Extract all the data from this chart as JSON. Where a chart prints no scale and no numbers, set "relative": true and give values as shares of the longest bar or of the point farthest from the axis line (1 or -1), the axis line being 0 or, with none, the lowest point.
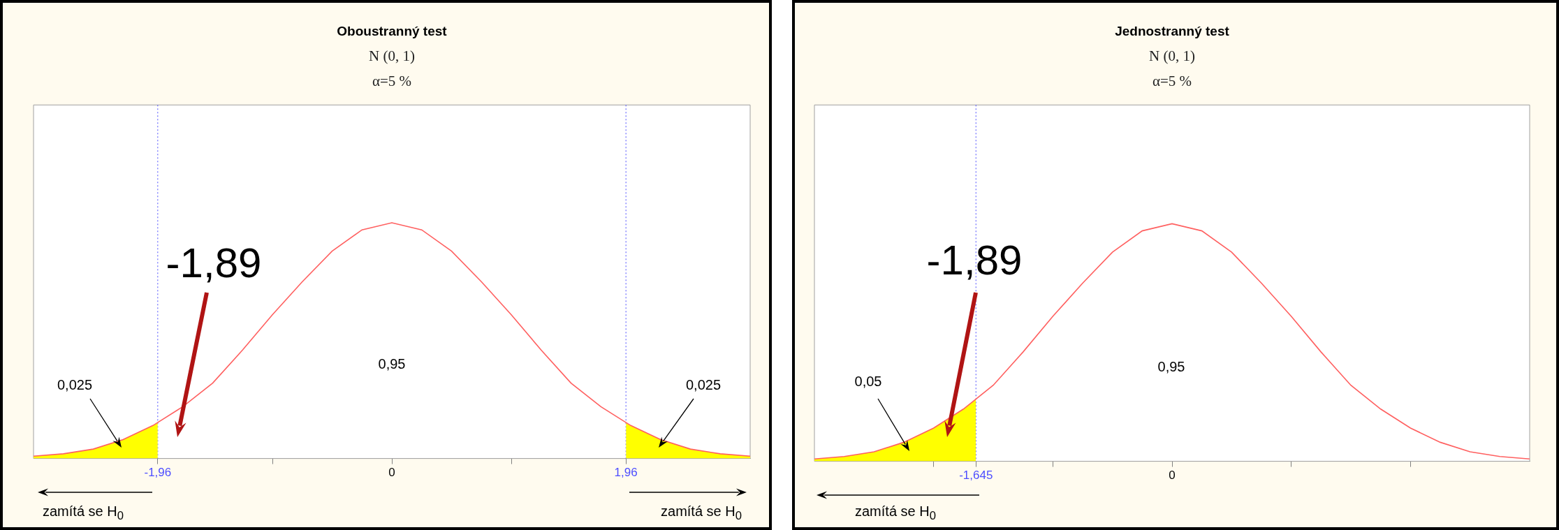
{
  "chart_data": [
    {
      "type": "line",
      "title": "Oboustranný test",
      "subtitle": "N (0, 1)\nα=5 %",
      "relative": true,
      "xlim": [
        -3,
        3
      ],
      "xticks": [
        {
          "value": -1.96,
          "label": "-1,96"
        },
        {
          "value": -1,
          "label": null
        },
        {
          "value": 0,
          "label": "0"
        },
        {
          "value": 1,
          "label": null
        },
        {
          "value": 1.96,
          "label": "1,96"
        }
      ],
      "series": [
        {
          "color": "#ff6060",
          "x": [
            -3,
            -2.75,
            -2.5,
            -2.25,
            -2,
            -1.75,
            -1.5,
            -1.25,
            -1,
            -0.75,
            -0.5,
            -0.25,
            0,
            0.25,
            0.5,
            0.75,
            1,
            1.25,
            1.5,
            1.75,
            2,
            2.25,
            2.5,
            2.75,
            3
          ],
          "values": [
            0.01,
            0.02,
            0.04,
            0.08,
            0.14,
            0.22,
            0.32,
            0.46,
            0.61,
            0.75,
            0.88,
            0.97,
            1,
            0.97,
            0.88,
            0.75,
            0.61,
            0.46,
            0.32,
            0.22,
            0.14,
            0.08,
            0.04,
            0.02,
            0.01
          ]
        },
        {
          "type": "area",
          "color": "#ffff00",
          "x": [
            -3,
            -2.75,
            -2.5,
            -2.25,
            -2,
            -1.96
          ],
          "values": [
            0.01,
            0.02,
            0.04,
            0.08,
            0.14,
            0.15
          ]
        },
        {
          "type": "area",
          "color": "#ffff00",
          "x": [
            1.96,
            2,
            2.25,
            2.5,
            2.75,
            3
          ],
          "values": [
            0.15,
            0.14,
            0.08,
            0.04,
            0.02,
            0.01
          ]
        }
      ],
      "ref_lines": [
        {
          "axis": "x",
          "value": -1.96,
          "color": "#4d4dff",
          "line_style": "dotted"
        },
        {
          "axis": "x",
          "value": 1.96,
          "color": "#4d4dff",
          "line_style": "dotted"
        }
      ],
      "annotations": [
        "0,95",
        "0,025",
        "0,025",
        "-1,89",
        "zamítá se H$_{0}$",
        "zamítá se H$_{0}$"
      ]
    },
    {
      "type": "line",
      "title": "Jednostranný test",
      "subtitle": "N (0, 1)\nα=5 %",
      "relative": true,
      "xlim": [
        -3,
        3
      ],
      "xticks": [
        {
          "value": -2,
          "label": null
        },
        {
          "value": -1.645,
          "label": "-1,645"
        },
        {
          "value": -1,
          "label": null
        },
        {
          "value": 0,
          "label": "0"
        },
        {
          "value": 1,
          "label": null
        },
        {
          "value": 2,
          "label": null
        }
      ],
      "series": [
        {
          "color": "#ff6060",
          "x": [
            -3,
            -2.75,
            -2.5,
            -2.25,
            -2,
            -1.75,
            -1.5,
            -1.25,
            -1,
            -0.75,
            -0.5,
            -0.25,
            0,
            0.25,
            0.5,
            0.75,
            1,
            1.25,
            1.5,
            1.75,
            2,
            2.25,
            2.5,
            2.75,
            3
          ],
          "values": [
            0.01,
            0.02,
            0.04,
            0.08,
            0.14,
            0.22,
            0.32,
            0.46,
            0.61,
            0.75,
            0.88,
            0.97,
            1,
            0.97,
            0.88,
            0.75,
            0.61,
            0.46,
            0.32,
            0.22,
            0.14,
            0.08,
            0.04,
            0.02,
            0.01
          ]
        },
        {
          "type": "area",
          "color": "#ffff00",
          "x": [
            -3,
            -2.75,
            -2.5,
            -2.25,
            -2,
            -1.75,
            -1.645
          ],
          "values": [
            0.01,
            0.02,
            0.04,
            0.08,
            0.14,
            0.22,
            0.26
          ]
        }
      ],
      "ref_lines": [
        {
          "axis": "x",
          "value": -1.645,
          "color": "#4d4dff",
          "line_style": "dotted"
        }
      ],
      "annotations": [
        "0,95",
        "0,05",
        "-1,89",
        "zamítá se H$_{0}$"
      ]
    }
  ]
}
